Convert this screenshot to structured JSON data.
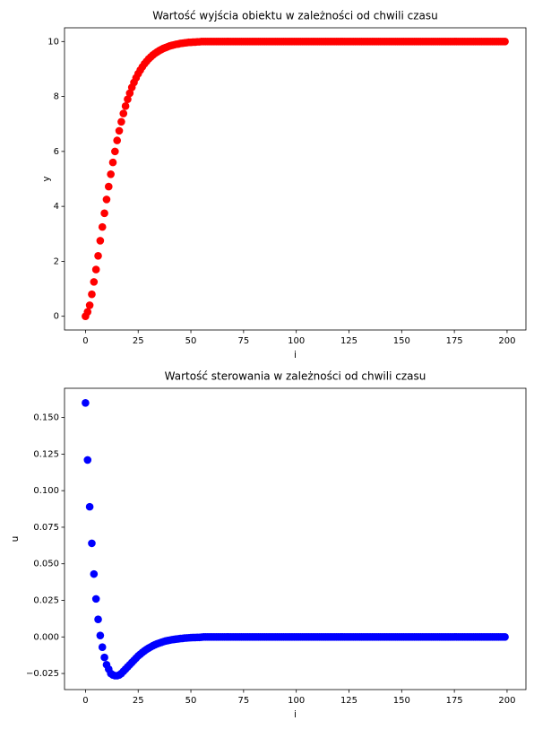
{
  "chart_data": [
    {
      "type": "scatter",
      "title": "Wartość wyjścia obiektu w zależności od chwili czasu",
      "x_label": "i",
      "y_label": "y",
      "color": "#ff0000",
      "x": [
        0,
        1,
        2,
        3,
        4,
        5,
        6,
        7,
        8,
        9,
        10,
        11,
        12,
        13,
        14,
        15,
        16,
        17,
        18,
        19,
        20,
        21,
        22,
        23,
        24,
        25,
        26,
        27,
        28,
        29,
        30,
        31,
        32,
        33,
        34,
        35,
        36,
        37,
        38,
        39,
        40,
        41,
        42,
        43,
        44,
        45,
        46,
        47,
        48,
        49,
        50,
        51,
        52,
        53,
        54,
        55,
        56,
        57,
        58,
        59,
        60,
        61,
        62,
        63,
        64,
        65,
        66,
        67,
        68,
        69,
        70,
        71,
        72,
        73,
        74,
        75,
        76,
        77,
        78,
        79,
        80,
        81,
        82,
        83,
        84,
        85,
        86,
        87,
        88,
        89,
        90,
        91,
        92,
        93,
        94,
        95,
        96,
        97,
        98,
        99,
        100,
        101,
        102,
        103,
        104,
        105,
        106,
        107,
        108,
        109,
        110,
        111,
        112,
        113,
        114,
        115,
        116,
        117,
        118,
        119,
        120,
        121,
        122,
        123,
        124,
        125,
        126,
        127,
        128,
        129,
        130,
        131,
        132,
        133,
        134,
        135,
        136,
        137,
        138,
        139,
        140,
        141,
        142,
        143,
        144,
        145,
        146,
        147,
        148,
        149,
        150,
        151,
        152,
        153,
        154,
        155,
        156,
        157,
        158,
        159,
        160,
        161,
        162,
        163,
        164,
        165,
        166,
        167,
        168,
        169,
        170,
        171,
        172,
        173,
        174,
        175,
        176,
        177,
        178,
        179,
        180,
        181,
        182,
        183,
        184,
        185,
        186,
        187,
        188,
        189,
        190,
        191,
        192,
        193,
        194,
        195,
        196,
        197,
        198,
        199
      ],
      "values": [
        0,
        0.16,
        0.4,
        0.8,
        1.25,
        1.7,
        2.2,
        2.75,
        3.25,
        3.75,
        4.25,
        4.72,
        5.17,
        5.6,
        6.0,
        6.4,
        6.75,
        7.08,
        7.38,
        7.65,
        7.9,
        8.12,
        8.33,
        8.51,
        8.68,
        8.83,
        8.96,
        9.08,
        9.19,
        9.28,
        9.37,
        9.44,
        9.51,
        9.57,
        9.62,
        9.67,
        9.71,
        9.75,
        9.78,
        9.81,
        9.84,
        9.86,
        9.88,
        9.9,
        9.91,
        9.93,
        9.94,
        9.95,
        9.96,
        9.97,
        9.97,
        9.98,
        9.98,
        9.99,
        9.99,
        10,
        10,
        10,
        10,
        10,
        10,
        10,
        10,
        10,
        10,
        10,
        10,
        10,
        10,
        10,
        10,
        10,
        10,
        10,
        10,
        10,
        10,
        10,
        10,
        10,
        10,
        10,
        10,
        10,
        10,
        10,
        10,
        10,
        10,
        10,
        10,
        10,
        10,
        10,
        10,
        10,
        10,
        10,
        10,
        10,
        10,
        10,
        10,
        10,
        10,
        10,
        10,
        10,
        10,
        10,
        10,
        10,
        10,
        10,
        10,
        10,
        10,
        10,
        10,
        10,
        10,
        10,
        10,
        10,
        10,
        10,
        10,
        10,
        10,
        10,
        10,
        10,
        10,
        10,
        10,
        10,
        10,
        10,
        10,
        10,
        10,
        10,
        10,
        10,
        10,
        10,
        10,
        10,
        10,
        10,
        10,
        10,
        10,
        10,
        10,
        10,
        10,
        10,
        10,
        10,
        10,
        10,
        10,
        10,
        10,
        10,
        10,
        10,
        10,
        10,
        10,
        10,
        10,
        10,
        10,
        10,
        10,
        10,
        10,
        10,
        10,
        10,
        10,
        10,
        10,
        10,
        10,
        10,
        10,
        10,
        10,
        10,
        10,
        10,
        10,
        10,
        10,
        10,
        10,
        10
      ],
      "xlim": [
        -9.95,
        208.95
      ],
      "xticks": [
        0,
        25,
        50,
        75,
        100,
        125,
        150,
        175,
        200
      ],
      "ylim": [
        -0.5,
        10.5
      ],
      "yticks": [
        0,
        2,
        4,
        6,
        8,
        10
      ]
    },
    {
      "type": "scatter",
      "title": "Wartość sterowania w zależności od chwili czasu",
      "x_label": "i",
      "y_label": "u",
      "color": "#0000ff",
      "x": [
        0,
        1,
        2,
        3,
        4,
        5,
        6,
        7,
        8,
        9,
        10,
        11,
        12,
        13,
        14,
        15,
        16,
        17,
        18,
        19,
        20,
        21,
        22,
        23,
        24,
        25,
        26,
        27,
        28,
        29,
        30,
        31,
        32,
        33,
        34,
        35,
        36,
        37,
        38,
        39,
        40,
        41,
        42,
        43,
        44,
        45,
        46,
        47,
        48,
        49,
        50,
        51,
        52,
        53,
        54,
        55,
        56,
        57,
        58,
        59,
        60,
        61,
        62,
        63,
        64,
        65,
        66,
        67,
        68,
        69,
        70,
        71,
        72,
        73,
        74,
        75,
        76,
        77,
        78,
        79,
        80,
        81,
        82,
        83,
        84,
        85,
        86,
        87,
        88,
        89,
        90,
        91,
        92,
        93,
        94,
        95,
        96,
        97,
        98,
        99,
        100,
        101,
        102,
        103,
        104,
        105,
        106,
        107,
        108,
        109,
        110,
        111,
        112,
        113,
        114,
        115,
        116,
        117,
        118,
        119,
        120,
        121,
        122,
        123,
        124,
        125,
        126,
        127,
        128,
        129,
        130,
        131,
        132,
        133,
        134,
        135,
        136,
        137,
        138,
        139,
        140,
        141,
        142,
        143,
        144,
        145,
        146,
        147,
        148,
        149,
        150,
        151,
        152,
        153,
        154,
        155,
        156,
        157,
        158,
        159,
        160,
        161,
        162,
        163,
        164,
        165,
        166,
        167,
        168,
        169,
        170,
        171,
        172,
        173,
        174,
        175,
        176,
        177,
        178,
        179,
        180,
        181,
        182,
        183,
        184,
        185,
        186,
        187,
        188,
        189,
        190,
        191,
        192,
        193,
        194,
        195,
        196,
        197,
        198,
        199
      ],
      "values": [
        0.16,
        0.121,
        0.089,
        0.064,
        0.043,
        0.026,
        0.012,
        0.001,
        -0.007,
        -0.014,
        -0.019,
        -0.022,
        -0.025,
        -0.026,
        -0.0265,
        -0.0265,
        -0.026,
        -0.025,
        -0.0235,
        -0.022,
        -0.0205,
        -0.019,
        -0.0175,
        -0.016,
        -0.0145,
        -0.013,
        -0.0118,
        -0.0106,
        -0.0095,
        -0.0085,
        -0.0076,
        -0.0068,
        -0.006,
        -0.0053,
        -0.0047,
        -0.0042,
        -0.0037,
        -0.0032,
        -0.0028,
        -0.0025,
        -0.0022,
        -0.0019,
        -0.0017,
        -0.0015,
        -0.0013,
        -0.0011,
        -0.001,
        -0.0008,
        -0.0007,
        -0.0006,
        -0.0005,
        -0.0004,
        -0.0004,
        -0.0003,
        -0.0003,
        -0.0002,
        0,
        0,
        0,
        0,
        0,
        0,
        0,
        0,
        0,
        0,
        0,
        0,
        0,
        0,
        0,
        0,
        0,
        0,
        0,
        0,
        0,
        0,
        0,
        0,
        0,
        0,
        0,
        0,
        0,
        0,
        0,
        0,
        0,
        0,
        0,
        0,
        0,
        0,
        0,
        0,
        0,
        0,
        0,
        0,
        0,
        0,
        0,
        0,
        0,
        0,
        0,
        0,
        0,
        0,
        0,
        0,
        0,
        0,
        0,
        0,
        0,
        0,
        0,
        0,
        0,
        0,
        0,
        0,
        0,
        0,
        0,
        0,
        0,
        0,
        0,
        0,
        0,
        0,
        0,
        0,
        0,
        0,
        0,
        0,
        0,
        0,
        0,
        0,
        0,
        0,
        0,
        0,
        0,
        0,
        0,
        0,
        0,
        0,
        0,
        0,
        0,
        0,
        0,
        0,
        0,
        0,
        0,
        0,
        0,
        0,
        0,
        0,
        0,
        0,
        0,
        0,
        0,
        0,
        0,
        0,
        0,
        0,
        0,
        0,
        0,
        0,
        0,
        0,
        0,
        0,
        0,
        0,
        0,
        0,
        0,
        0,
        0,
        0,
        0,
        0,
        0,
        0,
        0,
        0
      ],
      "xlim": [
        -9.95,
        208.95
      ],
      "xticks": [
        0,
        25,
        50,
        75,
        100,
        125,
        150,
        175,
        200
      ],
      "ylim": [
        -0.036,
        0.17
      ],
      "yticks": [
        {
          "value": -0.025,
          "label": "−0.025"
        },
        {
          "value": 0,
          "label": "0.000"
        },
        {
          "value": 0.025,
          "label": "0.025"
        },
        {
          "value": 0.05,
          "label": "0.050"
        },
        {
          "value": 0.075,
          "label": "0.075"
        },
        {
          "value": 0.1,
          "label": "0.100"
        },
        {
          "value": 0.125,
          "label": "0.125"
        },
        {
          "value": 0.15,
          "label": "0.150"
        }
      ]
    }
  ]
}
